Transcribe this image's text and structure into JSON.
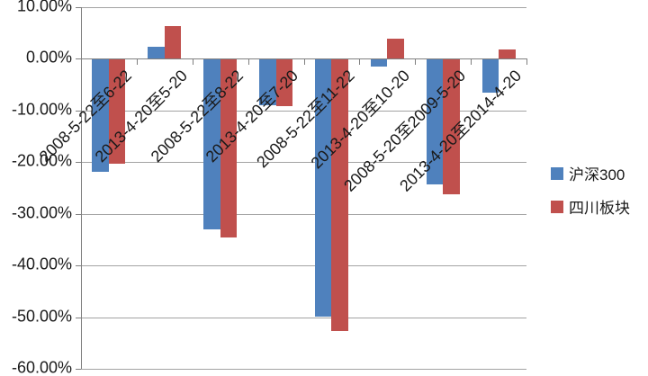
{
  "chart_data": {
    "type": "bar",
    "title": "",
    "categories": [
      "2008-5-22至6-22",
      "2013-4-20至5-20",
      "2008-5-22至8-22",
      "2013-4-20至7-20",
      "2008-5-22至11-22",
      "2013-4-20至10-20",
      "2008-5-20至2009-5-20",
      "2013-4-20至2014-4-20"
    ],
    "series": [
      {
        "name": "沪深300",
        "color": "#4F81BD",
        "values": [
          -21.8,
          2.3,
          -32.9,
          -8.9,
          -49.8,
          -1.4,
          -24.2,
          -6.4
        ]
      },
      {
        "name": "四川板块",
        "color": "#C0504D",
        "values": [
          -20.2,
          6.3,
          -34.5,
          -9.1,
          -52.6,
          3.9,
          -26.1,
          1.7
        ]
      }
    ],
    "y_axis": {
      "ylim": [
        -60,
        10
      ],
      "tick_step": 10,
      "format": "0.00%",
      "ticks": [
        {
          "label": "10.00%",
          "value": 10
        },
        {
          "label": "0.00%",
          "value": 0
        },
        {
          "label": "-10.00%",
          "value": -10
        },
        {
          "label": "-20.00%",
          "value": -20
        },
        {
          "label": "-30.00%",
          "value": -30
        },
        {
          "label": "-40.00%",
          "value": -40
        },
        {
          "label": "-50.00%",
          "value": -50
        },
        {
          "label": "-60.00%",
          "value": -60
        }
      ]
    },
    "x_axis": {
      "label_rotation_deg": -45
    },
    "legend": {
      "position": "right",
      "entries": [
        "沪深300",
        "四川板块"
      ]
    },
    "grid": true,
    "colors": {
      "gridline": "#a3a3a3",
      "axis": "#7f7f7f",
      "text": "#1a1a1a",
      "background": "#ffffff"
    }
  }
}
